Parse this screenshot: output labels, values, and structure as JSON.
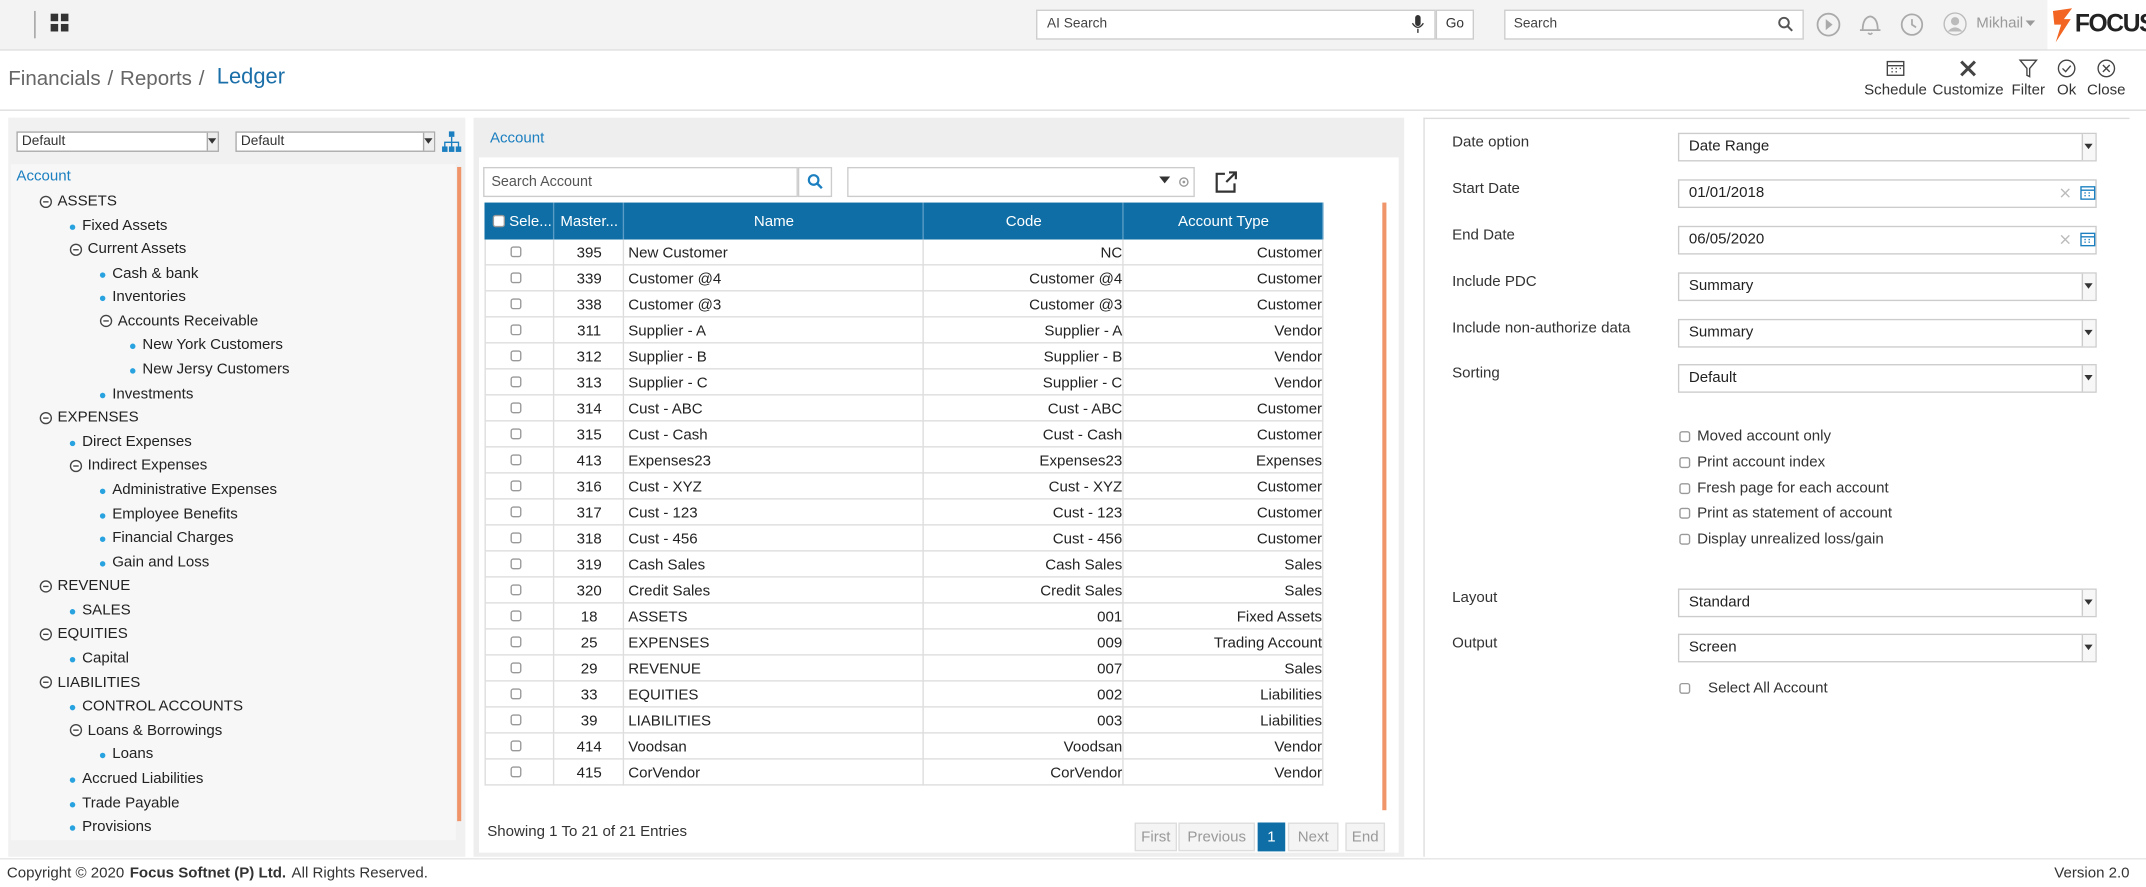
{
  "topbar": {
    "ai_search": "AI Search",
    "go": "Go",
    "search": "Search",
    "user": "Mikhail",
    "logo": "FOCUS"
  },
  "breadcrumb": {
    "items": [
      "Financials",
      "Reports",
      "Ledger"
    ],
    "separator": "/"
  },
  "toolbar": [
    "Schedule",
    "Customize",
    "Filter",
    "Ok",
    "Close"
  ],
  "left": {
    "dropdowns": [
      "Default",
      "Default"
    ],
    "tree_root": "Account",
    "tree": [
      {
        "label": "ASSETS",
        "level": 1,
        "group": true
      },
      {
        "label": "Fixed Assets",
        "level": 2,
        "group": false
      },
      {
        "label": "Current Assets",
        "level": 2,
        "group": true
      },
      {
        "label": "Cash & bank",
        "level": 3,
        "group": false
      },
      {
        "label": "Inventories",
        "level": 3,
        "group": false
      },
      {
        "label": "Accounts Receivable",
        "level": 3,
        "group": true
      },
      {
        "label": "New York Customers",
        "level": 4,
        "group": false
      },
      {
        "label": "New Jersy Customers",
        "level": 4,
        "group": false
      },
      {
        "label": "Investments",
        "level": 3,
        "group": false
      },
      {
        "label": "EXPENSES",
        "level": 1,
        "group": true
      },
      {
        "label": "Direct Expenses",
        "level": 2,
        "group": false
      },
      {
        "label": "Indirect Expenses",
        "level": 2,
        "group": true
      },
      {
        "label": "Administrative Expenses",
        "level": 3,
        "group": false
      },
      {
        "label": "Employee Benefits",
        "level": 3,
        "group": false
      },
      {
        "label": "Financial Charges",
        "level": 3,
        "group": false
      },
      {
        "label": "Gain and Loss",
        "level": 3,
        "group": false
      },
      {
        "label": "REVENUE",
        "level": 1,
        "group": true
      },
      {
        "label": "SALES",
        "level": 2,
        "group": false
      },
      {
        "label": "EQUITIES",
        "level": 1,
        "group": true
      },
      {
        "label": "Capital",
        "level": 2,
        "group": false
      },
      {
        "label": "LIABILITIES",
        "level": 1,
        "group": true
      },
      {
        "label": "CONTROL ACCOUNTS",
        "level": 2,
        "group": false
      },
      {
        "label": "Loans & Borrowings",
        "level": 2,
        "group": true
      },
      {
        "label": "Loans",
        "level": 3,
        "group": false
      },
      {
        "label": "Accrued Liabilities",
        "level": 2,
        "group": false
      },
      {
        "label": "Trade Payable",
        "level": 2,
        "group": false
      },
      {
        "label": "Provisions",
        "level": 2,
        "group": false
      }
    ]
  },
  "accounts": {
    "title": "Account",
    "search_placeholder": "Search Account",
    "columns": [
      "Sele...",
      "Master...",
      "Name",
      "Code",
      "Account Type"
    ],
    "rows": [
      [
        395,
        "New Customer",
        "NC",
        "Customer"
      ],
      [
        339,
        "Customer @4",
        "Customer @4",
        "Customer"
      ],
      [
        338,
        "Customer @3",
        "Customer @3",
        "Customer"
      ],
      [
        311,
        "Supplier - A",
        "Supplier - A",
        "Vendor"
      ],
      [
        312,
        "Supplier - B",
        "Supplier - B",
        "Vendor"
      ],
      [
        313,
        "Supplier - C",
        "Supplier - C",
        "Vendor"
      ],
      [
        314,
        "Cust - ABC",
        "Cust - ABC",
        "Customer"
      ],
      [
        315,
        "Cust - Cash",
        "Cust - Cash",
        "Customer"
      ],
      [
        413,
        "Expenses23",
        "Expenses23",
        "Expenses"
      ],
      [
        316,
        "Cust - XYZ",
        "Cust - XYZ",
        "Customer"
      ],
      [
        317,
        "Cust - 123",
        "Cust - 123",
        "Customer"
      ],
      [
        318,
        "Cust - 456",
        "Cust - 456",
        "Customer"
      ],
      [
        319,
        "Cash Sales",
        "Cash Sales",
        "Sales"
      ],
      [
        320,
        "Credit Sales",
        "Credit Sales",
        "Sales"
      ],
      [
        18,
        "ASSETS",
        "001",
        "Fixed Assets"
      ],
      [
        25,
        "EXPENSES",
        "009",
        "Trading Account"
      ],
      [
        29,
        "REVENUE",
        "007",
        "Sales"
      ],
      [
        33,
        "EQUITIES",
        "002",
        "Liabilities"
      ],
      [
        39,
        "LIABILITIES",
        "003",
        "Liabilities"
      ],
      [
        414,
        "Voodsan",
        "Voodsan",
        "Vendor"
      ],
      [
        415,
        "CorVendor",
        "CorVendor",
        "Vendor"
      ]
    ],
    "summary": "Showing 1 To 21 of 21 Entries",
    "pager": [
      "First",
      "Previous",
      1,
      "Next",
      "End"
    ]
  },
  "options": {
    "fields": [
      {
        "label": "Date option",
        "value": "Date Range",
        "input": "select"
      },
      {
        "label": "Start Date",
        "value": "01/01/2018",
        "input": "date"
      },
      {
        "label": "End Date",
        "value": "06/05/2020",
        "input": "date"
      },
      {
        "label": "Include PDC",
        "value": "Summary",
        "input": "select"
      },
      {
        "label": "Include non-authorize data",
        "value": "Summary",
        "input": "select"
      },
      {
        "label": "Sorting",
        "value": "Default",
        "input": "select"
      }
    ],
    "checkboxes": [
      "Moved account only",
      "Print account index",
      "Fresh page for each account",
      "Print as statement of account",
      "Display unrealized loss/gain"
    ],
    "fields2": [
      {
        "label": "Layout",
        "value": "Standard",
        "input": "select"
      },
      {
        "label": "Output",
        "value": "Screen",
        "input": "select"
      }
    ],
    "select_all": "Select All Account"
  },
  "footer": {
    "copyright": "Copyright © 2020",
    "company": "Focus Softnet (P) Ltd.",
    "rights": "All Rights Reserved.",
    "version": "Version 2.0"
  }
}
